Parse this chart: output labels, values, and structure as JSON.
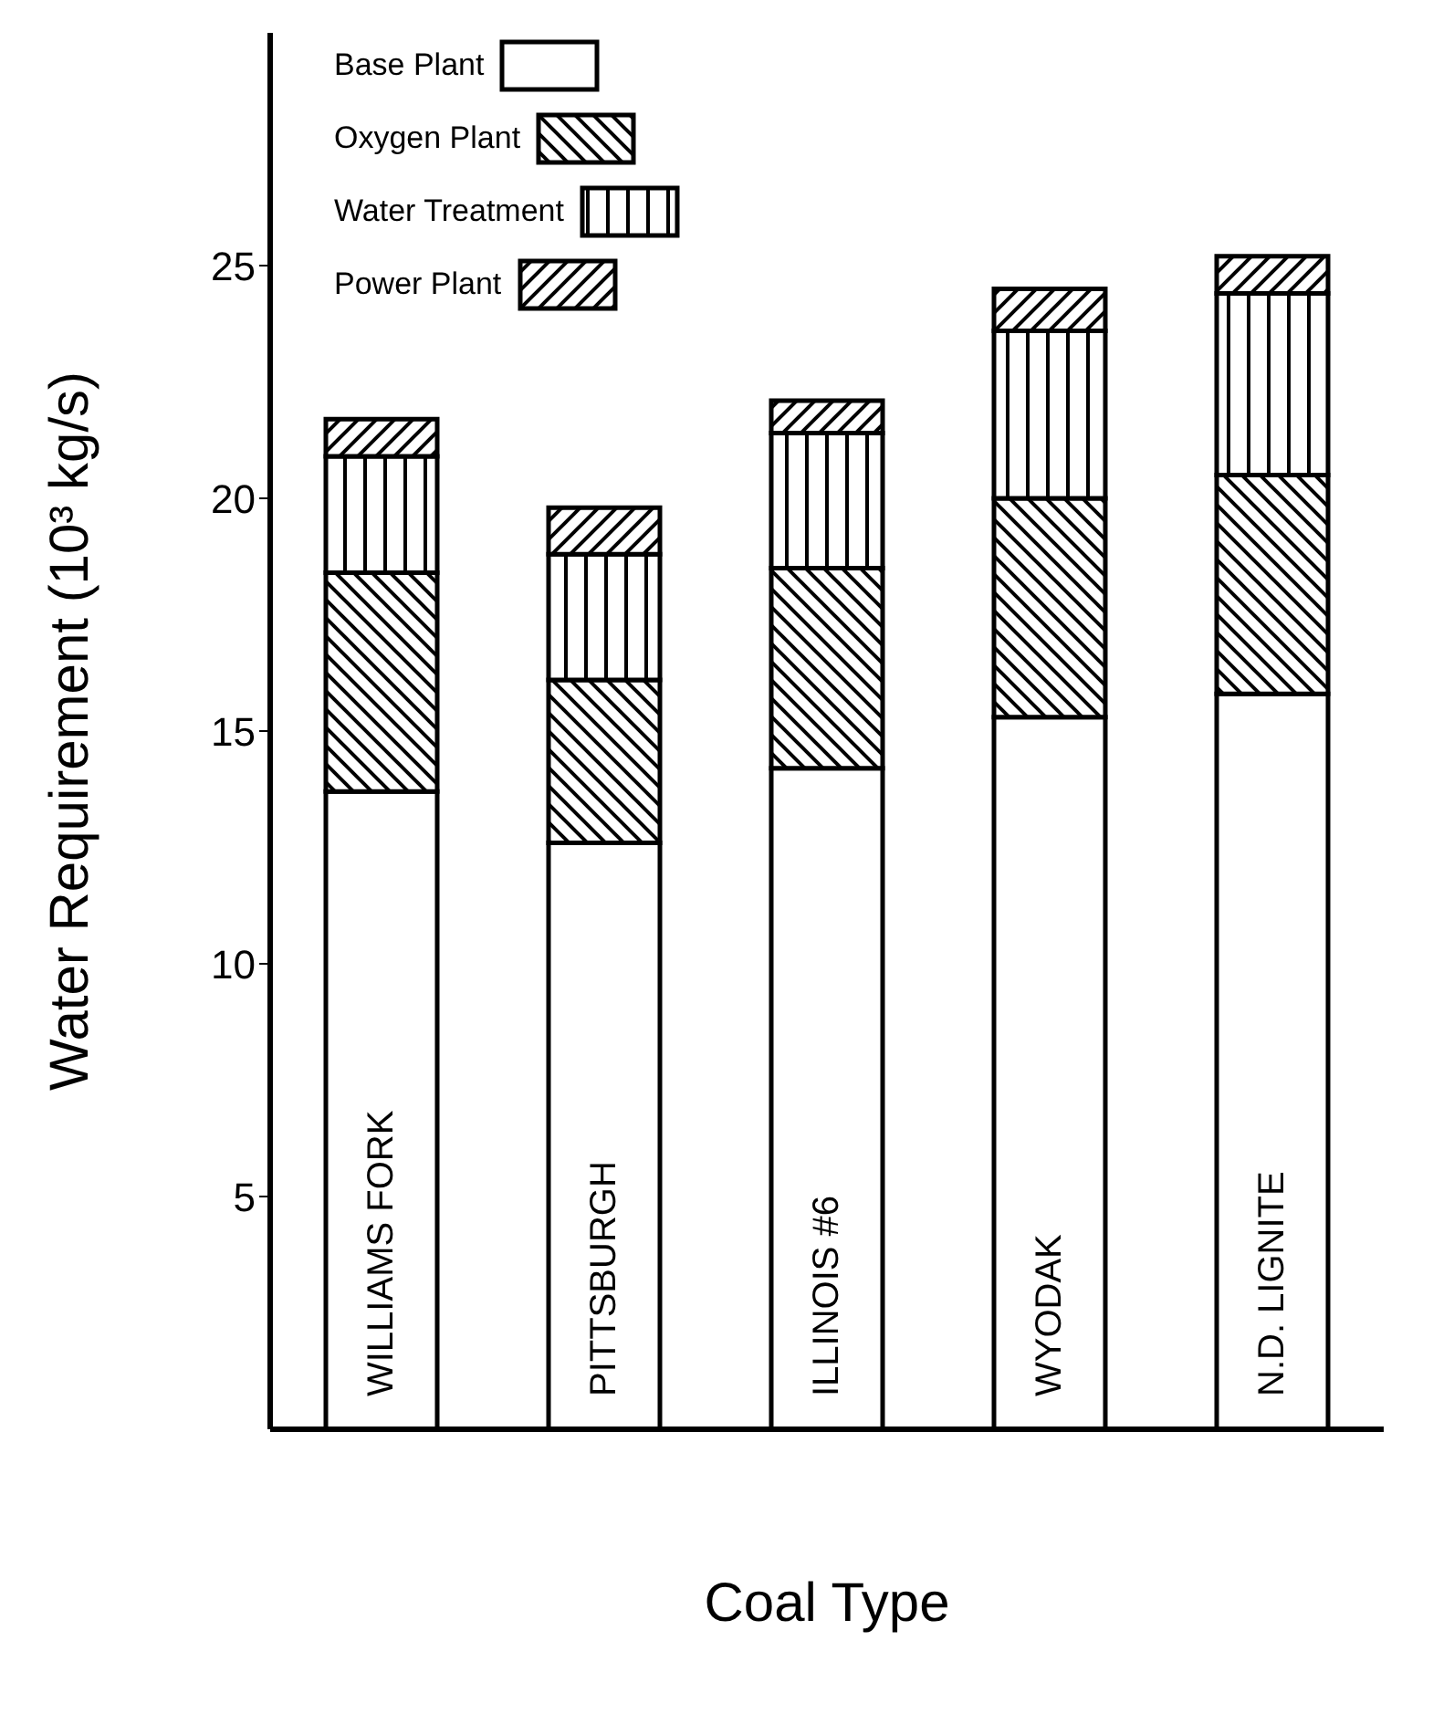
{
  "chart_data": {
    "type": "bar",
    "stacked": true,
    "xlabel": "Coal Type",
    "ylabel": "Water Requirement (10³ kg/s)",
    "categories": [
      "WILLIAMS FORK",
      "PITTSBURGH",
      "ILLINOIS #6",
      "WYODAK",
      "N.D. LIGNITE"
    ],
    "series": [
      {
        "name": "Base Plant",
        "color": "#ffffff",
        "values": [
          13.7,
          12.6,
          14.2,
          15.3,
          15.8
        ]
      },
      {
        "name": "Oxygen Plant",
        "color": "#000000",
        "values": [
          4.7,
          3.5,
          4.3,
          4.7,
          4.7
        ]
      },
      {
        "name": "Water Treatment",
        "color": "#000000",
        "values": [
          2.5,
          2.7,
          2.9,
          3.6,
          3.9
        ]
      },
      {
        "name": "Power Plant",
        "color": "#000000",
        "values": [
          0.8,
          1.0,
          0.7,
          0.9,
          0.8
        ]
      }
    ],
    "ylim": [
      0,
      30
    ],
    "yticks": [
      5,
      10,
      15,
      20,
      25
    ],
    "grid": false,
    "legend": "top left",
    "tick_labels": "y"
  }
}
